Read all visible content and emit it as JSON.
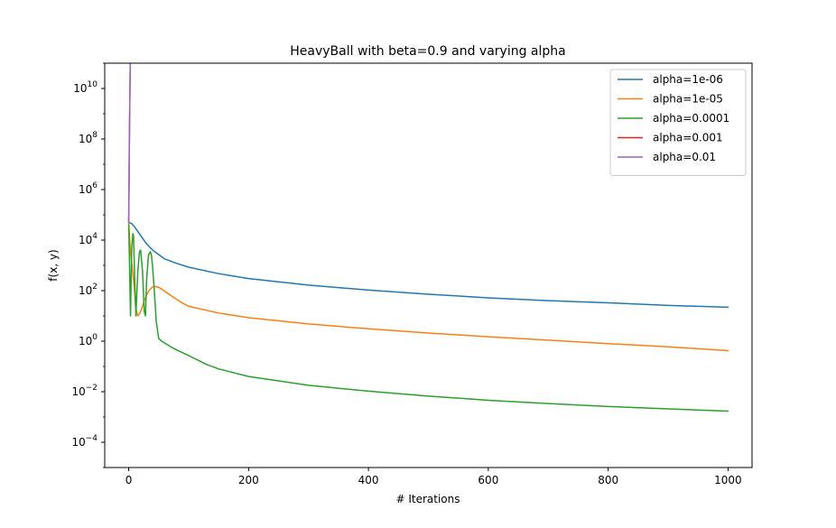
{
  "chart_data": {
    "type": "line",
    "title": "HeavyBall with beta=0.9 and varying alpha",
    "xlabel": "# Iterations",
    "ylabel": "f(x, y)",
    "xlim": [
      -40,
      1040
    ],
    "ylim": [
      1e-05,
      100000000000.0
    ],
    "yscale": "log",
    "x_ticks": [
      0,
      200,
      400,
      600,
      800,
      1000
    ],
    "x_tick_labels": [
      "0",
      "200",
      "400",
      "600",
      "800",
      "1000"
    ],
    "y_ticks": [
      0.0001,
      0.01,
      1.0,
      100.0,
      10000.0,
      1000000.0,
      100000000.0,
      10000000000.0
    ],
    "y_tick_labels": [
      {
        "base": "10",
        "exp": "−4"
      },
      {
        "base": "10",
        "exp": "−2"
      },
      {
        "base": "10",
        "exp": "0"
      },
      {
        "base": "10",
        "exp": "2"
      },
      {
        "base": "10",
        "exp": "4"
      },
      {
        "base": "10",
        "exp": "6"
      },
      {
        "base": "10",
        "exp": "8"
      },
      {
        "base": "10",
        "exp": "10"
      }
    ],
    "grid": false,
    "legend_position": "top-right",
    "series": [
      {
        "name": "alpha=1e-06",
        "color": "#1f77b4",
        "x": [
          0,
          5,
          10,
          20,
          30,
          40,
          60,
          80,
          100,
          150,
          200,
          300,
          400,
          500,
          600,
          700,
          800,
          900,
          1000
        ],
        "y": [
          50000,
          45000,
          33000,
          15000,
          7000,
          4000,
          1800,
          1200,
          850,
          470,
          300,
          165,
          105,
          72,
          52,
          40,
          33,
          26,
          22
        ]
      },
      {
        "name": "alpha=1e-05",
        "color": "#ff7f0e",
        "x": [
          0,
          3,
          6,
          9,
          12,
          15,
          18,
          22,
          26,
          30,
          35,
          40,
          45,
          50,
          55,
          60,
          70,
          80,
          90,
          100,
          150,
          200,
          300,
          400,
          500,
          600,
          700,
          800,
          900,
          1000
        ],
        "y": [
          50000,
          3000,
          800,
          150,
          20,
          10,
          12,
          20,
          40,
          70,
          110,
          140,
          145,
          135,
          115,
          95,
          65,
          45,
          32,
          24,
          13,
          8.5,
          4.8,
          3.1,
          2.1,
          1.5,
          1.1,
          0.8,
          0.6,
          0.42
        ]
      },
      {
        "name": "alpha=0.0001",
        "color": "#2ca02c",
        "x": [
          0,
          1,
          3,
          5,
          7,
          8,
          10,
          12,
          15,
          18,
          20,
          23,
          26,
          28,
          30,
          33,
          36,
          38,
          40,
          43,
          46,
          50,
          55,
          60,
          70,
          80,
          100,
          130,
          150,
          200,
          300,
          400,
          500,
          600,
          700,
          800,
          900,
          1000
        ],
        "y": [
          40000,
          3000,
          10,
          5000,
          18000,
          15000,
          300,
          10,
          500,
          3500,
          4000,
          600,
          15,
          10,
          300,
          2500,
          3500,
          2500,
          800,
          80,
          6,
          1.3,
          1.0,
          0.85,
          0.6,
          0.45,
          0.27,
          0.12,
          0.08,
          0.04,
          0.018,
          0.0105,
          0.0067,
          0.0046,
          0.0034,
          0.0026,
          0.0021,
          0.0017
        ]
      },
      {
        "name": "alpha=0.001",
        "color": "#d62728",
        "x": [
          0,
          0.5,
          1,
          1.5,
          2,
          2.5,
          3
        ],
        "y": [
          50000,
          1000000.0,
          30000000.0,
          500000000.0,
          6000000000.0,
          50000000000.0,
          1000000000000.0
        ]
      },
      {
        "name": "alpha=0.01",
        "color": "#9467bd",
        "x": [
          0,
          0.5,
          1,
          1.5,
          2,
          2.5,
          3
        ],
        "y": [
          50000,
          1200000.0,
          35000000.0,
          600000000.0,
          7000000000.0,
          60000000000.0,
          1000000000000.0
        ]
      }
    ]
  }
}
